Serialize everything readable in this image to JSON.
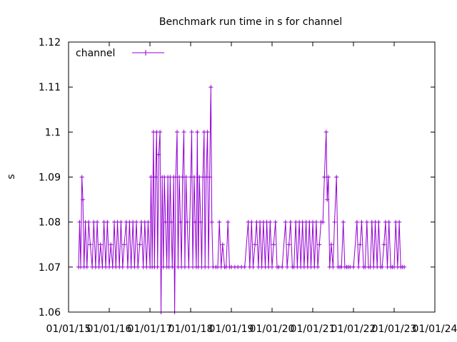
{
  "chart_data": {
    "type": "line",
    "title": "Benchmark run time in s for channel",
    "xlabel": "",
    "ylabel": "s",
    "x_axis_kind": "date",
    "x_tick_labels": [
      "01/01/15",
      "01/01/16",
      "01/01/17",
      "01/01/18",
      "01/01/19",
      "01/01/20",
      "01/01/21",
      "01/01/22",
      "01/01/23",
      "01/01/24"
    ],
    "xlim": [
      "2015-01-01",
      "2024-01-01"
    ],
    "y_tick_labels": [
      "1.06",
      "1.07",
      "1.08",
      "1.09",
      "1.1",
      "1.11",
      "1.12"
    ],
    "ylim": [
      1.06,
      1.12
    ],
    "grid": false,
    "legend": {
      "position": "top-left",
      "entries": [
        {
          "label": "channel",
          "color": "#9400d3"
        }
      ]
    },
    "series": [
      {
        "name": "channel",
        "color": "#9400d3",
        "marker": "plus",
        "points": [
          [
            "2015-04-01",
            1.07
          ],
          [
            "2015-04-10",
            1.08
          ],
          [
            "2015-04-20",
            1.07
          ],
          [
            "2015-05-01",
            1.09
          ],
          [
            "2015-05-10",
            1.085
          ],
          [
            "2015-05-20",
            1.07
          ],
          [
            "2015-06-01",
            1.08
          ],
          [
            "2015-06-15",
            1.07
          ],
          [
            "2015-07-01",
            1.08
          ],
          [
            "2015-07-15",
            1.075
          ],
          [
            "2015-08-01",
            1.07
          ],
          [
            "2015-08-15",
            1.08
          ],
          [
            "2015-09-01",
            1.07
          ],
          [
            "2015-09-15",
            1.08
          ],
          [
            "2015-10-01",
            1.07
          ],
          [
            "2015-10-15",
            1.075
          ],
          [
            "2015-11-01",
            1.07
          ],
          [
            "2015-11-15",
            1.08
          ],
          [
            "2015-12-01",
            1.07
          ],
          [
            "2015-12-15",
            1.08
          ],
          [
            "2016-01-01",
            1.07
          ],
          [
            "2016-01-15",
            1.075
          ],
          [
            "2016-02-01",
            1.07
          ],
          [
            "2016-02-15",
            1.08
          ],
          [
            "2016-03-01",
            1.07
          ],
          [
            "2016-03-15",
            1.08
          ],
          [
            "2016-04-01",
            1.07
          ],
          [
            "2016-04-15",
            1.08
          ],
          [
            "2016-05-01",
            1.07
          ],
          [
            "2016-05-15",
            1.075
          ],
          [
            "2016-06-01",
            1.08
          ],
          [
            "2016-06-15",
            1.07
          ],
          [
            "2016-07-01",
            1.08
          ],
          [
            "2016-07-15",
            1.07
          ],
          [
            "2016-08-01",
            1.08
          ],
          [
            "2016-08-15",
            1.07
          ],
          [
            "2016-09-01",
            1.08
          ],
          [
            "2016-09-15",
            1.07
          ],
          [
            "2016-10-01",
            1.075
          ],
          [
            "2016-10-15",
            1.08
          ],
          [
            "2016-11-01",
            1.07
          ],
          [
            "2016-11-15",
            1.08
          ],
          [
            "2016-12-01",
            1.07
          ],
          [
            "2016-12-15",
            1.08
          ],
          [
            "2017-01-01",
            1.07
          ],
          [
            "2017-01-10",
            1.09
          ],
          [
            "2017-01-20",
            1.07
          ],
          [
            "2017-02-01",
            1.1
          ],
          [
            "2017-02-10",
            1.07
          ],
          [
            "2017-02-20",
            1.09
          ],
          [
            "2017-03-01",
            1.1
          ],
          [
            "2017-03-10",
            1.07
          ],
          [
            "2017-03-20",
            1.095
          ],
          [
            "2017-04-01",
            1.1
          ],
          [
            "2017-04-10",
            1.06
          ],
          [
            "2017-04-20",
            1.09
          ],
          [
            "2017-05-01",
            1.07
          ],
          [
            "2017-05-10",
            1.09
          ],
          [
            "2017-05-20",
            1.08
          ],
          [
            "2017-06-01",
            1.07
          ],
          [
            "2017-06-10",
            1.09
          ],
          [
            "2017-06-20",
            1.07
          ],
          [
            "2017-07-01",
            1.09
          ],
          [
            "2017-07-10",
            1.08
          ],
          [
            "2017-07-20",
            1.07
          ],
          [
            "2017-08-01",
            1.09
          ],
          [
            "2017-08-10",
            1.06
          ],
          [
            "2017-08-20",
            1.09
          ],
          [
            "2017-09-01",
            1.1
          ],
          [
            "2017-09-10",
            1.07
          ],
          [
            "2017-09-20",
            1.09
          ],
          [
            "2017-10-01",
            1.08
          ],
          [
            "2017-10-10",
            1.07
          ],
          [
            "2017-10-20",
            1.09
          ],
          [
            "2017-11-01",
            1.1
          ],
          [
            "2017-11-10",
            1.07
          ],
          [
            "2017-11-20",
            1.09
          ],
          [
            "2017-12-01",
            1.08
          ],
          [
            "2017-12-15",
            1.07
          ],
          [
            "2018-01-01",
            1.09
          ],
          [
            "2018-01-10",
            1.1
          ],
          [
            "2018-01-20",
            1.07
          ],
          [
            "2018-02-01",
            1.09
          ],
          [
            "2018-02-10",
            1.08
          ],
          [
            "2018-02-20",
            1.07
          ],
          [
            "2018-03-01",
            1.1
          ],
          [
            "2018-03-10",
            1.07
          ],
          [
            "2018-03-20",
            1.09
          ],
          [
            "2018-04-01",
            1.08
          ],
          [
            "2018-04-10",
            1.07
          ],
          [
            "2018-04-20",
            1.09
          ],
          [
            "2018-05-01",
            1.1
          ],
          [
            "2018-05-10",
            1.07
          ],
          [
            "2018-05-20",
            1.09
          ],
          [
            "2018-06-01",
            1.1
          ],
          [
            "2018-06-10",
            1.07
          ],
          [
            "2018-06-20",
            1.09
          ],
          [
            "2018-07-01",
            1.11
          ],
          [
            "2018-07-10",
            1.08
          ],
          [
            "2018-07-20",
            1.07
          ],
          [
            "2018-08-15",
            1.07
          ],
          [
            "2018-09-01",
            1.07
          ],
          [
            "2018-09-15",
            1.08
          ],
          [
            "2018-10-01",
            1.07
          ],
          [
            "2018-10-15",
            1.075
          ],
          [
            "2018-11-01",
            1.07
          ],
          [
            "2018-11-15",
            1.07
          ],
          [
            "2018-12-01",
            1.08
          ],
          [
            "2018-12-15",
            1.07
          ],
          [
            "2019-01-01",
            1.07
          ],
          [
            "2019-02-01",
            1.07
          ],
          [
            "2019-03-01",
            1.07
          ],
          [
            "2019-04-01",
            1.07
          ],
          [
            "2019-05-01",
            1.07
          ],
          [
            "2019-06-01",
            1.08
          ],
          [
            "2019-06-15",
            1.07
          ],
          [
            "2019-07-01",
            1.08
          ],
          [
            "2019-07-15",
            1.07
          ],
          [
            "2019-08-01",
            1.075
          ],
          [
            "2019-08-15",
            1.08
          ],
          [
            "2019-09-01",
            1.07
          ],
          [
            "2019-09-15",
            1.08
          ],
          [
            "2019-10-01",
            1.07
          ],
          [
            "2019-10-15",
            1.08
          ],
          [
            "2019-11-01",
            1.07
          ],
          [
            "2019-11-15",
            1.08
          ],
          [
            "2019-12-01",
            1.07
          ],
          [
            "2019-12-15",
            1.08
          ],
          [
            "2020-01-01",
            1.07
          ],
          [
            "2020-01-15",
            1.075
          ],
          [
            "2020-02-01",
            1.08
          ],
          [
            "2020-02-15",
            1.07
          ],
          [
            "2020-03-01",
            1.07
          ],
          [
            "2020-04-01",
            1.07
          ],
          [
            "2020-05-01",
            1.08
          ],
          [
            "2020-05-15",
            1.07
          ],
          [
            "2020-06-01",
            1.075
          ],
          [
            "2020-06-15",
            1.08
          ],
          [
            "2020-07-01",
            1.07
          ],
          [
            "2020-07-15",
            1.07
          ],
          [
            "2020-08-01",
            1.08
          ],
          [
            "2020-08-15",
            1.07
          ],
          [
            "2020-09-01",
            1.08
          ],
          [
            "2020-09-15",
            1.07
          ],
          [
            "2020-10-01",
            1.08
          ],
          [
            "2020-10-15",
            1.07
          ],
          [
            "2020-11-01",
            1.08
          ],
          [
            "2020-11-15",
            1.07
          ],
          [
            "2020-12-01",
            1.08
          ],
          [
            "2020-12-15",
            1.07
          ],
          [
            "2021-01-01",
            1.08
          ],
          [
            "2021-01-15",
            1.07
          ],
          [
            "2021-02-01",
            1.08
          ],
          [
            "2021-02-15",
            1.07
          ],
          [
            "2021-03-01",
            1.075
          ],
          [
            "2021-03-15",
            1.08
          ],
          [
            "2021-04-01",
            1.08
          ],
          [
            "2021-04-15",
            1.09
          ],
          [
            "2021-05-01",
            1.1
          ],
          [
            "2021-05-10",
            1.085
          ],
          [
            "2021-05-20",
            1.09
          ],
          [
            "2021-06-01",
            1.07
          ],
          [
            "2021-06-15",
            1.075
          ],
          [
            "2021-07-01",
            1.07
          ],
          [
            "2021-07-15",
            1.08
          ],
          [
            "2021-08-01",
            1.09
          ],
          [
            "2021-08-15",
            1.07
          ],
          [
            "2021-09-01",
            1.07
          ],
          [
            "2021-09-15",
            1.07
          ],
          [
            "2021-10-01",
            1.08
          ],
          [
            "2021-10-15",
            1.07
          ],
          [
            "2021-11-01",
            1.07
          ],
          [
            "2021-11-15",
            1.07
          ],
          [
            "2021-12-01",
            1.07
          ],
          [
            "2022-01-01",
            1.07
          ],
          [
            "2022-02-01",
            1.08
          ],
          [
            "2022-02-15",
            1.07
          ],
          [
            "2022-03-01",
            1.075
          ],
          [
            "2022-03-15",
            1.08
          ],
          [
            "2022-04-01",
            1.07
          ],
          [
            "2022-04-15",
            1.07
          ],
          [
            "2022-05-01",
            1.08
          ],
          [
            "2022-05-15",
            1.07
          ],
          [
            "2022-06-01",
            1.07
          ],
          [
            "2022-06-15",
            1.08
          ],
          [
            "2022-07-01",
            1.07
          ],
          [
            "2022-07-15",
            1.08
          ],
          [
            "2022-08-01",
            1.07
          ],
          [
            "2022-08-15",
            1.08
          ],
          [
            "2022-09-01",
            1.07
          ],
          [
            "2022-09-15",
            1.07
          ],
          [
            "2022-10-01",
            1.075
          ],
          [
            "2022-10-15",
            1.08
          ],
          [
            "2022-11-01",
            1.07
          ],
          [
            "2022-11-15",
            1.08
          ],
          [
            "2022-12-01",
            1.07
          ],
          [
            "2022-12-15",
            1.07
          ],
          [
            "2023-01-01",
            1.07
          ],
          [
            "2023-01-15",
            1.08
          ],
          [
            "2023-02-01",
            1.07
          ],
          [
            "2023-02-15",
            1.08
          ],
          [
            "2023-03-01",
            1.07
          ],
          [
            "2023-03-15",
            1.07
          ],
          [
            "2023-04-01",
            1.07
          ]
        ]
      }
    ]
  }
}
